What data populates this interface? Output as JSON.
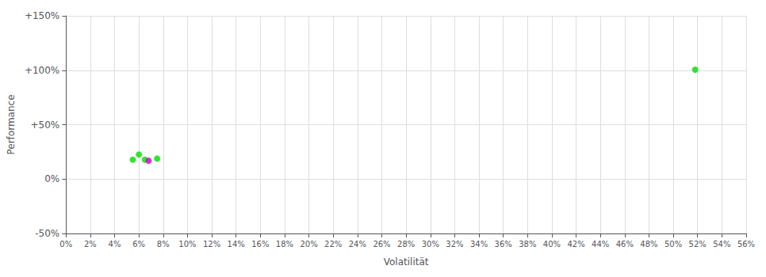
{
  "chart_data": {
    "type": "scatter",
    "xlabel": "Volatilität",
    "ylabel": "Performance",
    "xlim": [
      0,
      0.56
    ],
    "ylim": [
      -0.5,
      1.5
    ],
    "xticks": [
      {
        "value": 0.0,
        "label": "0%"
      },
      {
        "value": 0.02,
        "label": "2%"
      },
      {
        "value": 0.04,
        "label": "4%"
      },
      {
        "value": 0.06,
        "label": "6%"
      },
      {
        "value": 0.08,
        "label": "8%"
      },
      {
        "value": 0.1,
        "label": "10%"
      },
      {
        "value": 0.12,
        "label": "12%"
      },
      {
        "value": 0.14,
        "label": "14%"
      },
      {
        "value": 0.16,
        "label": "16%"
      },
      {
        "value": 0.18,
        "label": "18%"
      },
      {
        "value": 0.2,
        "label": "20%"
      },
      {
        "value": 0.22,
        "label": "22%"
      },
      {
        "value": 0.24,
        "label": "24%"
      },
      {
        "value": 0.26,
        "label": "26%"
      },
      {
        "value": 0.28,
        "label": "28%"
      },
      {
        "value": 0.3,
        "label": "30%"
      },
      {
        "value": 0.32,
        "label": "32%"
      },
      {
        "value": 0.34,
        "label": "34%"
      },
      {
        "value": 0.36,
        "label": "36%"
      },
      {
        "value": 0.38,
        "label": "38%"
      },
      {
        "value": 0.4,
        "label": "40%"
      },
      {
        "value": 0.42,
        "label": "42%"
      },
      {
        "value": 0.44,
        "label": "44%"
      },
      {
        "value": 0.46,
        "label": "46%"
      },
      {
        "value": 0.48,
        "label": "48%"
      },
      {
        "value": 0.5,
        "label": "50%"
      },
      {
        "value": 0.52,
        "label": "52%"
      },
      {
        "value": 0.54,
        "label": "54%"
      },
      {
        "value": 0.56,
        "label": "56%"
      }
    ],
    "yticks": [
      {
        "value": -0.5,
        "label": "-50%"
      },
      {
        "value": 0.0,
        "label": "0%"
      },
      {
        "value": 0.5,
        "label": "+50%"
      },
      {
        "value": 1.0,
        "label": "+100%"
      },
      {
        "value": 1.5,
        "label": "+150%"
      }
    ],
    "grid": true,
    "series": [
      {
        "color": "#00dd00",
        "x": [
          0.06,
          0.055,
          0.065,
          0.075,
          0.518
        ],
        "values": [
          0.225,
          0.178,
          0.178,
          0.188,
          1.005
        ]
      },
      {
        "color": "#cc00cc",
        "x": [
          0.068
        ],
        "values": [
          0.168
        ]
      }
    ]
  }
}
